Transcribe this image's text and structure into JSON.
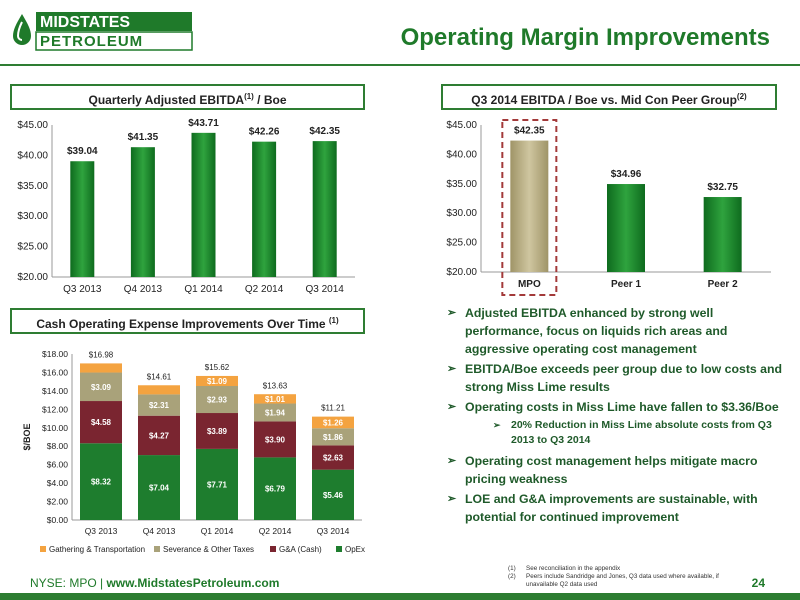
{
  "header": {
    "logo_line1": "MIDSTATES",
    "logo_line2": "PETROLEUM",
    "title": "Operating Margin Improvements"
  },
  "colors": {
    "green_dark": "#0e6b1e",
    "green_light": "#2fa33e",
    "tan": "#b8ad8a",
    "orange": "#f4a340",
    "gray_tan": "#a9a27a",
    "maroon": "#7a2530",
    "opex_green": "#1e7d2e"
  },
  "panel1": {
    "title": "Quarterly Adjusted EBITDA",
    "title_sup": "(1)",
    "title_suffix": " / Boe"
  },
  "panel2": {
    "title": "Q3 2014 EBITDA / Boe vs. Mid Con Peer Group",
    "title_sup": "(2)"
  },
  "panel3": {
    "title": "Cash Operating Expense Improvements Over Time ",
    "title_sup": "(1)"
  },
  "chart_data": [
    {
      "type": "bar",
      "categories": [
        "Q3 2013",
        "Q4 2013",
        "Q1 2014",
        "Q2 2014",
        "Q3 2014"
      ],
      "values": [
        39.04,
        41.35,
        43.71,
        42.26,
        42.35
      ],
      "value_labels": [
        "$39.04",
        "$41.35",
        "$43.71",
        "$42.26",
        "$42.35"
      ],
      "ylim": [
        20,
        45
      ],
      "yticks": [
        "$20.00",
        "$25.00",
        "$30.00",
        "$35.00",
        "$40.00",
        "$45.00"
      ]
    },
    {
      "type": "bar",
      "categories": [
        "MPO",
        "Peer 1",
        "Peer 2"
      ],
      "values": [
        42.35,
        34.96,
        32.75
      ],
      "value_labels": [
        "$42.35",
        "$34.96",
        "$32.75"
      ],
      "ylim": [
        20,
        45
      ],
      "yticks": [
        "$20.00",
        "$25.00",
        "$30.00",
        "$35.00",
        "$40.00",
        "$45.00"
      ],
      "highlight": "MPO"
    },
    {
      "type": "bar",
      "stacked": true,
      "categories": [
        "Q3 2013",
        "Q4 2013",
        "Q1 2014",
        "Q2 2014",
        "Q3 2014"
      ],
      "ylabel": "$/BOE",
      "ylim": [
        0,
        18
      ],
      "yticks": [
        "$0.00",
        "$2.00",
        "$4.00",
        "$6.00",
        "$8.00",
        "$10.00",
        "$12.00",
        "$14.00",
        "$16.00",
        "$18.00"
      ],
      "totals": [
        16.98,
        14.61,
        15.62,
        13.63,
        11.21
      ],
      "total_labels": [
        "$16.98",
        "$14.61",
        "$15.62",
        "$13.63",
        "$11.21"
      ],
      "series": [
        {
          "name": "OpEx",
          "values": [
            8.32,
            7.04,
            7.71,
            6.79,
            5.46
          ],
          "labels": [
            "$8.32",
            "$7.04",
            "$7.71",
            "$6.79",
            "$5.46"
          ]
        },
        {
          "name": "G&A (Cash)",
          "values": [
            4.58,
            4.27,
            3.89,
            3.9,
            2.63
          ],
          "labels": [
            "$4.58",
            "$4.27",
            "$3.89",
            "$3.90",
            "$2.63"
          ]
        },
        {
          "name": "Severance & Other Taxes",
          "values": [
            3.09,
            2.31,
            2.93,
            1.94,
            1.86
          ],
          "labels": [
            "$3.09",
            "$2.31",
            "$2.93",
            "$1.94",
            "$1.86"
          ]
        },
        {
          "name": "Gathering & Transportation",
          "values": [
            0.99,
            0.99,
            1.09,
            1.01,
            1.26
          ],
          "labels": [
            "",
            "",
            "$1.09",
            "$1.01",
            "$1.26"
          ]
        }
      ],
      "legend": [
        "Gathering & Transportation",
        "Severance & Other Taxes",
        "G&A (Cash)",
        "OpEx"
      ],
      "legend_position": "bottom"
    }
  ],
  "bullets": [
    "Adjusted EBITDA enhanced by strong well performance, focus on liquids rich areas and aggressive operating cost management",
    "EBITDA/Boe exceeds peer group due to low costs and strong Miss Lime results",
    "Operating costs in Miss Lime have fallen to $3.36/Boe"
  ],
  "sub_bullet": "20% Reduction in Miss Lime absolute costs from Q3 2013 to Q3 2014",
  "bullets2": [
    "Operating cost management helps mitigate macro pricing weakness",
    "LOE and G&A improvements are sustainable, with potential for continued improvement"
  ],
  "footnotes": [
    {
      "n": "(1)",
      "text": "See reconciliation in the appendix"
    },
    {
      "n": "(2)",
      "text": "Peers include Sandridge and Jones, Q3 data used where available, if unavailable Q2 data used"
    }
  ],
  "footer": {
    "ticker": "NYSE: MPO | ",
    "url": "www.MidstatesPetroleum.com",
    "page": "24"
  }
}
